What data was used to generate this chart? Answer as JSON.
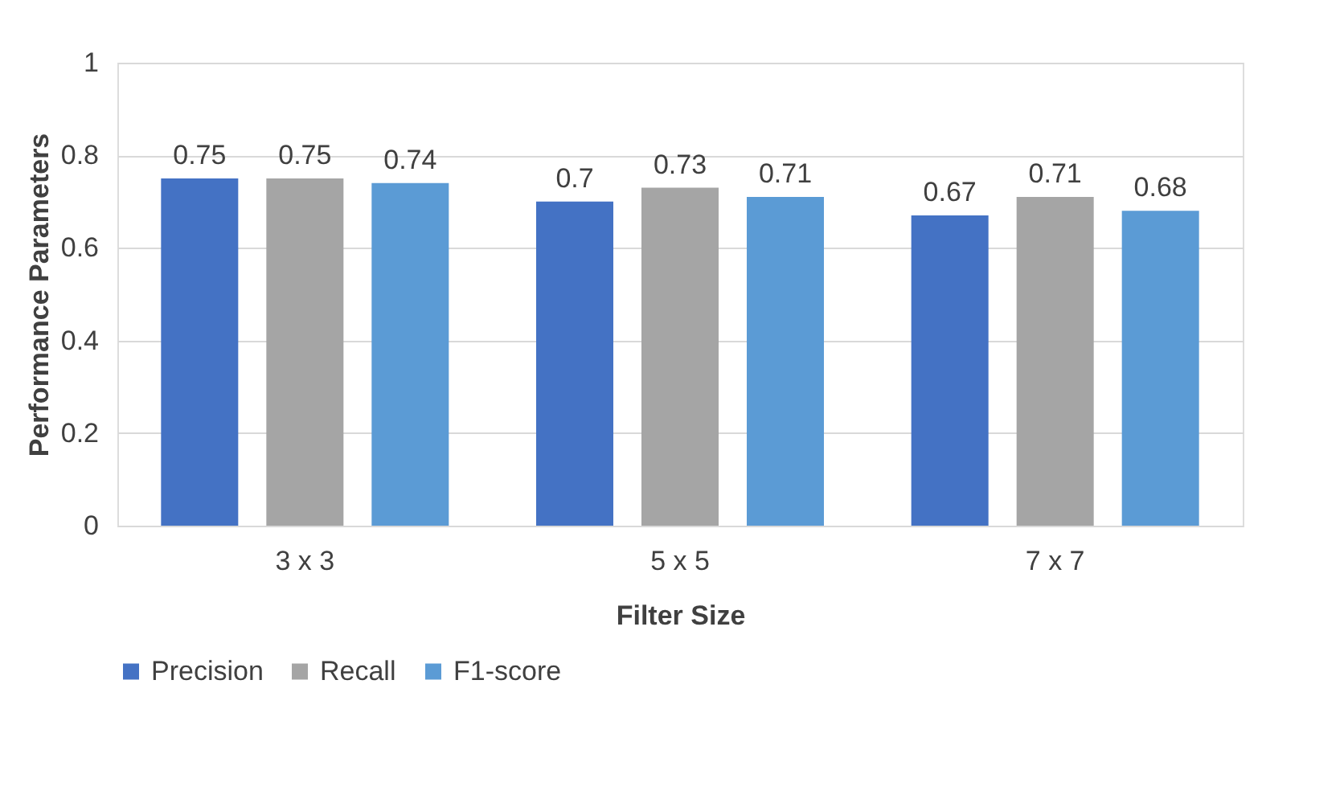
{
  "chart_data": {
    "type": "bar",
    "xlabel": "Filter Size",
    "ylabel": "Performance Parameters",
    "categories": [
      "3 x 3",
      "5 x 5",
      "7 x 7"
    ],
    "series": [
      {
        "name": "Precision",
        "color": "#4472c4",
        "values": [
          0.75,
          0.7,
          0.67
        ]
      },
      {
        "name": "Recall",
        "color": "#a5a5a5",
        "values": [
          0.75,
          0.73,
          0.71
        ]
      },
      {
        "name": "F1-score",
        "color": "#5b9bd5",
        "values": [
          0.74,
          0.71,
          0.68
        ]
      }
    ],
    "ylim": [
      0,
      1
    ],
    "yticks": [
      0,
      0.2,
      0.4,
      0.6,
      0.8,
      1
    ],
    "grid": "y",
    "legend": "bottom",
    "data_labels": true
  }
}
